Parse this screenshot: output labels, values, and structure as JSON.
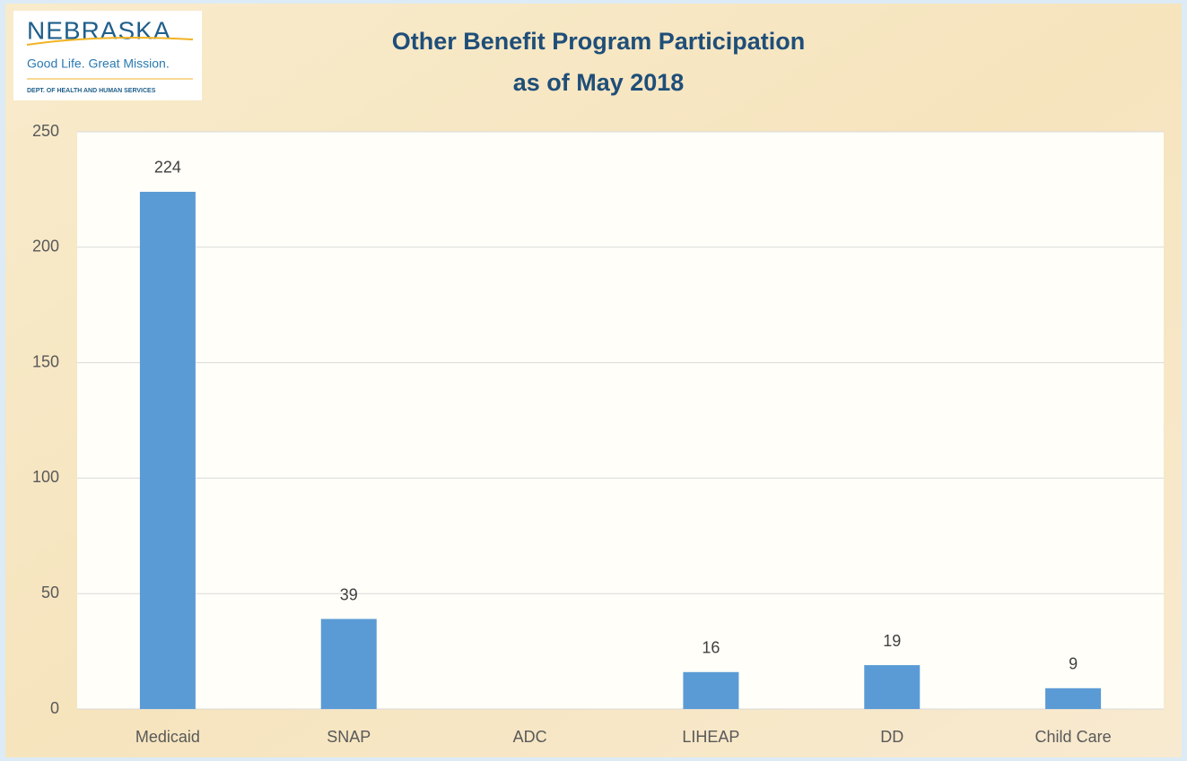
{
  "logo": {
    "name": "NEBRASKA",
    "tagline": "Good Life. Great Mission.",
    "department": "DEPT. OF HEALTH AND HUMAN SERVICES"
  },
  "chart_data": {
    "type": "bar",
    "title": "Other Benefit Program Participation",
    "subtitle": "as of May 2018",
    "categories": [
      "Medicaid",
      "SNAP",
      "ADC",
      "LIHEAP",
      "DD",
      "Child Care"
    ],
    "values": [
      224,
      39,
      null,
      16,
      19,
      9
    ],
    "color": "#5b9bd5",
    "ylim": [
      0,
      250
    ],
    "yticks": [
      0,
      50,
      100,
      150,
      200,
      250
    ],
    "grid": true
  }
}
